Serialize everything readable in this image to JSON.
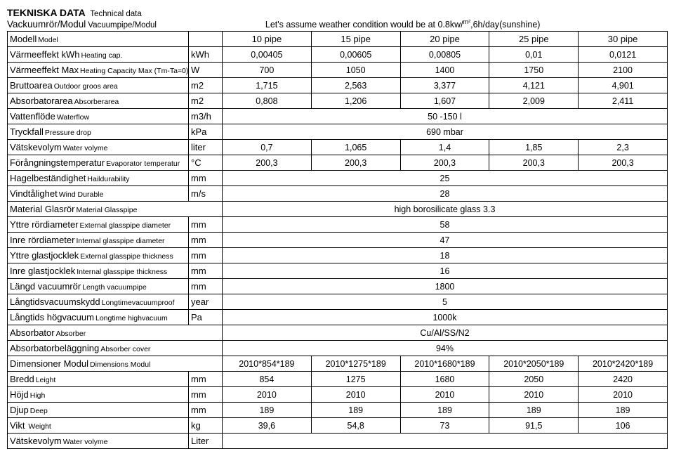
{
  "header": {
    "title_main": "TEKNISKA DATA",
    "title_sub": "Technical data",
    "subtitle_main": "Vackuumrör/Modul",
    "subtitle_sub": "Vacuumpipe/Modul",
    "assumption_1": "Let's assume weather condition would be at 0.8kw/",
    "assumption_sup": "m²",
    "assumption_2": ",6h/day(sunshine)"
  },
  "cols": [
    "10 pipe",
    "15 pipe",
    "20 pipe",
    "25 pipe",
    "30 pipe"
  ],
  "rows": [
    {
      "l": "Modell",
      "s": "Model",
      "u": "",
      "v": [
        "10 pipe",
        "15 pipe",
        "20 pipe",
        "25 pipe",
        "30 pipe"
      ],
      "head": true
    },
    {
      "l": "Värmeeffekt kWh",
      "s": "Heating cap.",
      "u": "kWh",
      "v": [
        "0,00405",
        "0,00605",
        "0,00805",
        "0,01",
        "0,0121"
      ]
    },
    {
      "l": "Värmeeffekt Max",
      "s": "Heating Capacity Max (Tm-Ta=0)",
      "u": "W",
      "v": [
        "700",
        "1050",
        "1400",
        "1750",
        "2100"
      ]
    },
    {
      "l": "Bruttoarea",
      "s": "Outdoor groos area",
      "u": "m2",
      "v": [
        "1,715",
        "2,563",
        "3,377",
        "4,121",
        "4,901"
      ]
    },
    {
      "l": "Absorbatorarea",
      "s": "Absorberarea",
      "u": "m2",
      "v": [
        "0,808",
        "1,206",
        "1,607",
        "2,009",
        "2,411"
      ]
    },
    {
      "l": "Vattenflöde",
      "s": "Waterflow",
      "u": "m3/h",
      "span": "50 -150 l"
    },
    {
      "l": "Tryckfall",
      "s": "Pressure drop",
      "u": "kPa",
      "span": "690 mbar"
    },
    {
      "l": "Vätskevolym",
      "s": "Water volyme",
      "u": "liter",
      "v": [
        "0,7",
        "1,065",
        "1,4",
        "1,85",
        "2,3"
      ]
    },
    {
      "l": "Förångningstemperatur",
      "s": "Evaporator temperatur",
      "u": "°C",
      "v": [
        "200,3",
        "200,3",
        "200,3",
        "200,3",
        "200,3"
      ]
    },
    {
      "l": "Hagelbeständighet",
      "s": "Haildurability",
      "u": "mm",
      "span": "25"
    },
    {
      "l": "Vindtålighet",
      "s": "Wind Durable",
      "u": "m/s",
      "span": "28"
    },
    {
      "l": "Material Glasrör",
      "s": "Material Glasspipe",
      "u": "",
      "span": "high borosilicate glass 3.3",
      "label_span_unit": true
    },
    {
      "l": "Yttre rördiameter",
      "s": "External glasspipe diameter",
      "u": "mm",
      "span": "58"
    },
    {
      "l": "Inre rördiameter",
      "s": "Internal glasspipe diameter",
      "u": "mm",
      "span": "47"
    },
    {
      "l": "Yttre glastjocklek",
      "s": "External glasspipe thickness",
      "u": "mm",
      "span": "18"
    },
    {
      "l": "Inre glastjocklek",
      "s": "Internal glasspipe thickness",
      "u": "mm",
      "span": "16"
    },
    {
      "l": "Längd vacuumrör",
      "s": "Length vacuumpipe",
      "u": "mm",
      "span": "1800"
    },
    {
      "l": "Långtidsvacuumskydd",
      "s": "Longtimevacuumproof",
      "u": "year",
      "span": "5"
    },
    {
      "l": "Långtids högvacuum",
      "s": "Longtime highvacuum",
      "u": "Pa",
      "span": "1000k"
    },
    {
      "l": "Absorbator",
      "s": "Absorber",
      "u": "",
      "span": "Cu/Al/SS/N2",
      "label_span_unit": true
    },
    {
      "l": "Absorbatorbeläggning",
      "s": "Absorber cover",
      "u": "",
      "span": "94%",
      "label_span_unit": true
    },
    {
      "l": "Dimensioner Modul",
      "s": "Dimensions Modul",
      "u": "",
      "v": [
        "2010*854*189",
        "2010*1275*189",
        "2010*1680*189",
        "2010*2050*189",
        "2010*2420*189"
      ],
      "label_span_unit": true
    },
    {
      "l": "Bredd",
      "s": "Leight",
      "u": "mm",
      "v": [
        "854",
        "1275",
        "1680",
        "2050",
        "2420"
      ]
    },
    {
      "l": "Höjd",
      "s": "High",
      "u": "mm",
      "v": [
        "2010",
        "2010",
        "2010",
        "2010",
        "2010"
      ]
    },
    {
      "l": "Djup",
      "s": "Deep",
      "u": "mm",
      "v": [
        "189",
        "189",
        "189",
        "189",
        "189"
      ]
    },
    {
      "l": "Vikt",
      "s": " Weight",
      "u": "kg",
      "v": [
        "39,6",
        "54,8",
        "73",
        "91,5",
        "106"
      ]
    },
    {
      "l": "Vätskevolym",
      "s": "Water volyme",
      "u": "Liter",
      "span": ""
    }
  ]
}
